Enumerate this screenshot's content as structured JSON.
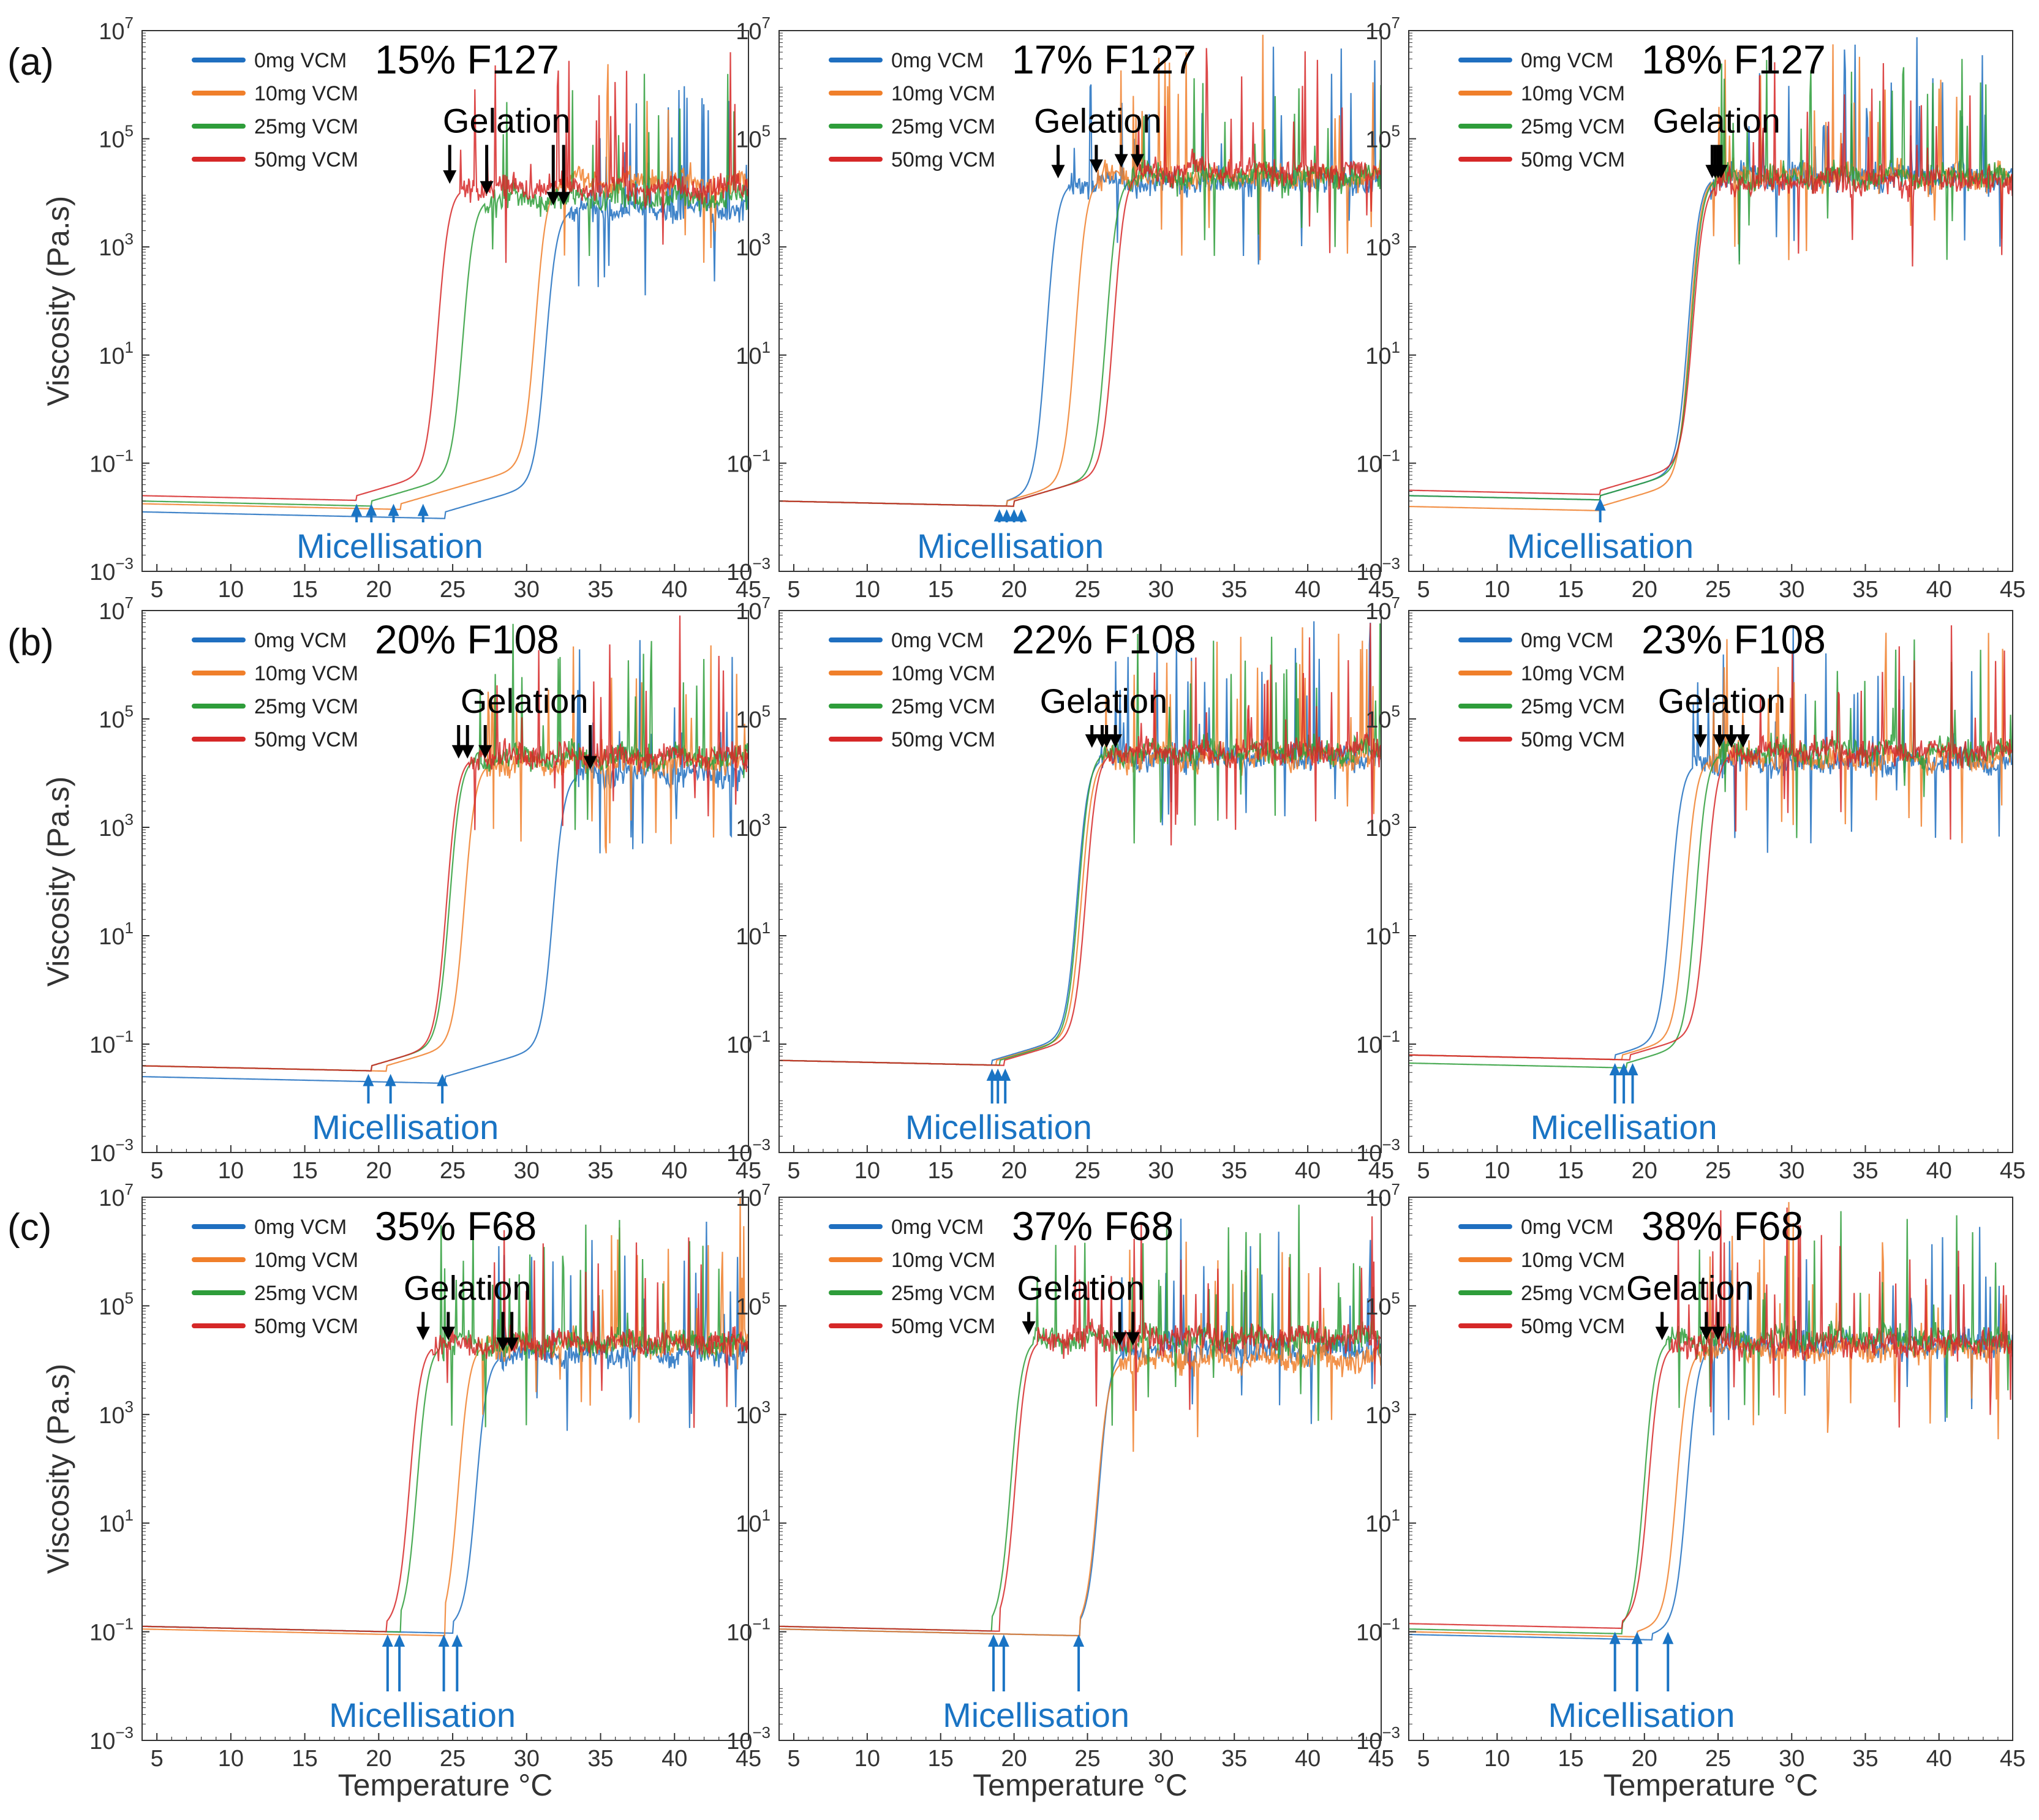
{
  "figure": {
    "row_labels": [
      "(a)",
      "(b)",
      "(c)"
    ],
    "colors": {
      "0mg VCM": "#1f6fc0",
      "10mg VCM": "#f07f2a",
      "25mg VCM": "#2e9d3a",
      "50mg VCM": "#d62828",
      "arrow_gel": "#000000",
      "arrow_mic": "#1a74c4"
    }
  },
  "chart_data": [
    {
      "type": "line",
      "row": "(a)",
      "title": "15% F127",
      "xlabel": "Temperature °C",
      "ylabel": "Viscosity (Pa.s)",
      "xlim": [
        4,
        45
      ],
      "ylim_log10": [
        -3,
        7
      ],
      "x_ticks": [
        "5",
        "10",
        "15",
        "20",
        "25",
        "30",
        "35",
        "40",
        "45"
      ],
      "y_ticks": [
        "10^-3",
        "10^-1",
        "10^1",
        "10^3",
        "10^5",
        "10^7"
      ],
      "legend": [
        "0mg VCM",
        "10mg VCM",
        "25mg VCM",
        "50mg VCM"
      ],
      "series": [
        {
          "name": "0mg VCM",
          "base": -1.9,
          "t_mic": 24.5,
          "t_rise": 31.3,
          "plateau": 3.7
        },
        {
          "name": "10mg VCM",
          "base": -1.75,
          "t_mic": 21.5,
          "t_rise": 30.6,
          "plateau": 4.2
        },
        {
          "name": "25mg VCM",
          "base": -1.7,
          "t_mic": 19.5,
          "t_rise": 25.7,
          "plateau": 3.9
        },
        {
          "name": "50mg VCM",
          "base": -1.6,
          "t_mic": 18.5,
          "t_rise": 24.0,
          "plateau": 4.1
        }
      ],
      "gelation_label": "Gelation",
      "gelation_T": [
        24.8,
        27.3,
        31.8,
        32.5
      ],
      "micellisation_label": "Micellisation",
      "micellisation_T": [
        18.5,
        19.5,
        21.0,
        23.0
      ]
    },
    {
      "type": "line",
      "row": "(a)",
      "title": "17% F127",
      "xlabel": "Temperature °C",
      "ylabel": "Viscosity (Pa.s)",
      "xlim": [
        4,
        45
      ],
      "ylim_log10": [
        -3,
        7
      ],
      "x_ticks": [
        "5",
        "10",
        "15",
        "20",
        "25",
        "30",
        "35",
        "40",
        "45"
      ],
      "y_ticks": [
        "10^-3",
        "10^-1",
        "10^1",
        "10^3",
        "10^5",
        "10^7"
      ],
      "legend": [
        "0mg VCM",
        "10mg VCM",
        "25mg VCM",
        "50mg VCM"
      ],
      "series": [
        {
          "name": "0mg VCM",
          "base": -1.7,
          "t_mic": 19.5,
          "t_rise": 22.2,
          "plateau": 4.2
        },
        {
          "name": "10mg VCM",
          "base": -1.7,
          "t_mic": 19.5,
          "t_rise": 24.2,
          "plateau": 4.3
        },
        {
          "name": "25mg VCM",
          "base": -1.7,
          "t_mic": 20.0,
          "t_rise": 26.3,
          "plateau": 4.3
        },
        {
          "name": "50mg VCM",
          "base": -1.7,
          "t_mic": 20.0,
          "t_rise": 26.8,
          "plateau": 4.4
        }
      ],
      "gelation_label": "Gelation",
      "gelation_T": [
        23.0,
        25.6,
        27.3,
        28.4
      ],
      "micellisation_label": "Micellisation",
      "micellisation_T": [
        19.0,
        19.5,
        20.0,
        20.5
      ]
    },
    {
      "type": "line",
      "row": "(a)",
      "title": "18% F127",
      "xlabel": "Temperature °C",
      "ylabel": "Viscosity (Pa.s)",
      "xlim": [
        4,
        45
      ],
      "ylim_log10": [
        -3,
        7
      ],
      "x_ticks": [
        "5",
        "10",
        "15",
        "20",
        "25",
        "30",
        "35",
        "40",
        "45"
      ],
      "y_ticks": [
        "10^-3",
        "10^-1",
        "10^1",
        "10^3",
        "10^5",
        "10^7"
      ],
      "legend": [
        "0mg VCM",
        "10mg VCM",
        "25mg VCM",
        "50mg VCM"
      ],
      "series": [
        {
          "name": "0mg VCM",
          "base": -1.6,
          "t_mic": 17.0,
          "t_rise": 23.0,
          "plateau": 4.3
        },
        {
          "name": "10mg VCM",
          "base": -1.8,
          "t_mic": 17.0,
          "t_rise": 23.1,
          "plateau": 4.3
        },
        {
          "name": "25mg VCM",
          "base": -1.6,
          "t_mic": 17.0,
          "t_rise": 23.2,
          "plateau": 4.3
        },
        {
          "name": "50mg VCM",
          "base": -1.5,
          "t_mic": 17.0,
          "t_rise": 23.3,
          "plateau": 4.2
        }
      ],
      "gelation_label": "Gelation",
      "gelation_T": [
        24.6,
        24.8,
        25.0,
        25.2
      ],
      "micellisation_label": "Micellisation",
      "micellisation_T": [
        17.0
      ]
    },
    {
      "type": "line",
      "row": "(b)",
      "title": "20% F108",
      "xlabel": "Temperature °C",
      "ylabel": "Viscosity (Pa.s)",
      "xlim": [
        4,
        45
      ],
      "ylim_log10": [
        -3,
        7
      ],
      "x_ticks": [
        "5",
        "10",
        "15",
        "20",
        "25",
        "30",
        "35",
        "40",
        "45"
      ],
      "y_ticks": [
        "10^-3",
        "10^-1",
        "10^1",
        "10^3",
        "10^5",
        "10^7"
      ],
      "legend": [
        "0mg VCM",
        "10mg VCM",
        "25mg VCM",
        "50mg VCM"
      ],
      "series": [
        {
          "name": "0mg VCM",
          "base": -1.6,
          "t_mic": 24.5,
          "t_rise": 31.8,
          "plateau": 4.0
        },
        {
          "name": "10mg VCM",
          "base": -1.4,
          "t_mic": 20.5,
          "t_rise": 25.8,
          "plateau": 4.2
        },
        {
          "name": "25mg VCM",
          "base": -1.4,
          "t_mic": 19.5,
          "t_rise": 24.8,
          "plateau": 4.3
        },
        {
          "name": "50mg VCM",
          "base": -1.4,
          "t_mic": 19.5,
          "t_rise": 24.6,
          "plateau": 4.3
        }
      ],
      "gelation_label": "Gelation",
      "gelation_T": [
        25.4,
        26.0,
        27.2,
        34.3
      ],
      "micellisation_label": "Micellisation",
      "micellisation_T": [
        19.3,
        20.8,
        24.3
      ]
    },
    {
      "type": "line",
      "row": "(b)",
      "title": "22% F108",
      "xlabel": "Temperature °C",
      "ylabel": "Viscosity (Pa.s)",
      "xlim": [
        4,
        45
      ],
      "ylim_log10": [
        -3,
        7
      ],
      "x_ticks": [
        "5",
        "10",
        "15",
        "20",
        "25",
        "30",
        "35",
        "40",
        "45"
      ],
      "y_ticks": [
        "10^-3",
        "10^-1",
        "10^1",
        "10^3",
        "10^5",
        "10^7"
      ],
      "legend": [
        "0mg VCM",
        "10mg VCM",
        "25mg VCM",
        "50mg VCM"
      ],
      "series": [
        {
          "name": "0mg VCM",
          "base": -1.3,
          "t_mic": 18.5,
          "t_rise": 24.3,
          "plateau": 4.3
        },
        {
          "name": "10mg VCM",
          "base": -1.3,
          "t_mic": 18.8,
          "t_rise": 24.6,
          "plateau": 4.3
        },
        {
          "name": "25mg VCM",
          "base": -1.3,
          "t_mic": 19.0,
          "t_rise": 24.4,
          "plateau": 4.4
        },
        {
          "name": "50mg VCM",
          "base": -1.3,
          "t_mic": 19.3,
          "t_rise": 24.9,
          "plateau": 4.4
        }
      ],
      "gelation_label": "Gelation",
      "gelation_T": [
        25.3,
        26.0,
        26.3,
        26.9
      ],
      "micellisation_label": "Micellisation",
      "micellisation_T": [
        18.5,
        18.9,
        19.4
      ]
    },
    {
      "type": "line",
      "row": "(b)",
      "title": "23% F108",
      "xlabel": "Temperature °C",
      "ylabel": "Viscosity (Pa.s)",
      "xlim": [
        4,
        45
      ],
      "ylim_log10": [
        -3,
        7
      ],
      "x_ticks": [
        "5",
        "10",
        "15",
        "20",
        "25",
        "30",
        "35",
        "40",
        "45"
      ],
      "y_ticks": [
        "10^-3",
        "10^-1",
        "10^1",
        "10^3",
        "10^5",
        "10^7"
      ],
      "legend": [
        "0mg VCM",
        "10mg VCM",
        "25mg VCM",
        "50mg VCM"
      ],
      "series": [
        {
          "name": "0mg VCM",
          "base": -1.2,
          "t_mic": 18.0,
          "t_rise": 21.8,
          "plateau": 4.2
        },
        {
          "name": "10mg VCM",
          "base": -1.2,
          "t_mic": 18.5,
          "t_rise": 22.8,
          "plateau": 4.3
        },
        {
          "name": "25mg VCM",
          "base": -1.35,
          "t_mic": 18.8,
          "t_rise": 23.5,
          "plateau": 4.4
        },
        {
          "name": "50mg VCM",
          "base": -1.2,
          "t_mic": 19.0,
          "t_rise": 24.2,
          "plateau": 4.4
        }
      ],
      "gelation_label": "Gelation",
      "gelation_T": [
        23.8,
        25.1,
        25.9,
        26.7
      ],
      "micellisation_label": "Micellisation",
      "micellisation_T": [
        18.0,
        18.6,
        19.2
      ]
    },
    {
      "type": "line",
      "row": "(c)",
      "title": "35% F68",
      "xlabel": "Temperature °C",
      "ylabel": "Viscosity (Pa.s)",
      "xlim": [
        4,
        45
      ],
      "ylim_log10": [
        -3,
        7
      ],
      "x_ticks": [
        "5",
        "10",
        "15",
        "20",
        "25",
        "30",
        "35",
        "40",
        "45"
      ],
      "y_ticks": [
        "10^-3",
        "10^-1",
        "10^1",
        "10^3",
        "10^5",
        "10^7"
      ],
      "legend": [
        "0mg VCM",
        "10mg VCM",
        "25mg VCM",
        "50mg VCM"
      ],
      "series": [
        {
          "name": "0mg VCM",
          "base": -0.9,
          "t_mic": 25.0,
          "t_rise": 26.6,
          "plateau": 4.1
        },
        {
          "name": "10mg VCM",
          "base": -0.95,
          "t_mic": 24.5,
          "t_rise": 25.4,
          "plateau": 4.3
        },
        {
          "name": "25mg VCM",
          "base": -0.9,
          "t_mic": 21.5,
          "t_rise": 22.6,
          "plateau": 4.3
        },
        {
          "name": "50mg VCM",
          "base": -0.9,
          "t_mic": 20.5,
          "t_rise": 22.1,
          "plateau": 4.3
        }
      ],
      "gelation_label": "Gelation",
      "gelation_T": [
        23.0,
        24.7,
        28.4,
        29.0
      ],
      "micellisation_label": "Micellisation",
      "micellisation_T": [
        20.6,
        21.4,
        24.4,
        25.3
      ]
    },
    {
      "type": "line",
      "row": "(c)",
      "title": "37% F68",
      "xlabel": "Temperature °C",
      "ylabel": "Viscosity (Pa.s)",
      "xlim": [
        4,
        45
      ],
      "ylim_log10": [
        -3,
        7
      ],
      "x_ticks": [
        "5",
        "10",
        "15",
        "20",
        "25",
        "30",
        "35",
        "40",
        "45"
      ],
      "y_ticks": [
        "10^-3",
        "10^-1",
        "10^1",
        "10^3",
        "10^5",
        "10^7"
      ],
      "legend": [
        "0mg VCM",
        "10mg VCM",
        "25mg VCM",
        "50mg VCM"
      ],
      "series": [
        {
          "name": "0mg VCM",
          "base": -0.95,
          "t_mic": 24.5,
          "t_rise": 25.8,
          "plateau": 4.2
        },
        {
          "name": "10mg VCM",
          "base": -0.95,
          "t_mic": 24.5,
          "t_rise": 25.7,
          "plateau": 4.0
        },
        {
          "name": "25mg VCM",
          "base": -0.9,
          "t_mic": 18.5,
          "t_rise": 19.8,
          "plateau": 4.4
        },
        {
          "name": "50mg VCM",
          "base": -0.9,
          "t_mic": 19.0,
          "t_rise": 20.1,
          "plateau": 4.4
        }
      ],
      "gelation_label": "Gelation",
      "gelation_T": [
        21.0,
        27.2,
        28.1
      ],
      "micellisation_label": "Micellisation",
      "micellisation_T": [
        18.6,
        19.3,
        24.4
      ]
    },
    {
      "type": "line",
      "row": "(c)",
      "title": "38% F68",
      "xlabel": "Temperature °C",
      "ylabel": "Viscosity (Pa.s)",
      "xlim": [
        4,
        45
      ],
      "ylim_log10": [
        -3,
        7
      ],
      "x_ticks": [
        "5",
        "10",
        "15",
        "20",
        "25",
        "30",
        "35",
        "40",
        "45"
      ],
      "y_ticks": [
        "10^-3",
        "10^-1",
        "10^1",
        "10^3",
        "10^5",
        "10^7"
      ],
      "legend": [
        "0mg VCM",
        "10mg VCM",
        "25mg VCM",
        "50mg VCM"
      ],
      "series": [
        {
          "name": "0mg VCM",
          "base": -1.05,
          "t_mic": 20.5,
          "t_rise": 22.9,
          "plateau": 4.3
        },
        {
          "name": "10mg VCM",
          "base": -1.0,
          "t_mic": 19.5,
          "t_rise": 22.2,
          "plateau": 4.2
        },
        {
          "name": "25mg VCM",
          "base": -0.95,
          "t_mic": 18.5,
          "t_rise": 20.0,
          "plateau": 4.4
        },
        {
          "name": "50mg VCM",
          "base": -0.85,
          "t_mic": 18.5,
          "t_rise": 20.3,
          "plateau": 4.3
        }
      ],
      "gelation_label": "Gelation",
      "gelation_T": [
        21.2,
        24.2,
        25.0
      ],
      "micellisation_label": "Micellisation",
      "micellisation_T": [
        18.0,
        19.5,
        21.6
      ]
    }
  ]
}
